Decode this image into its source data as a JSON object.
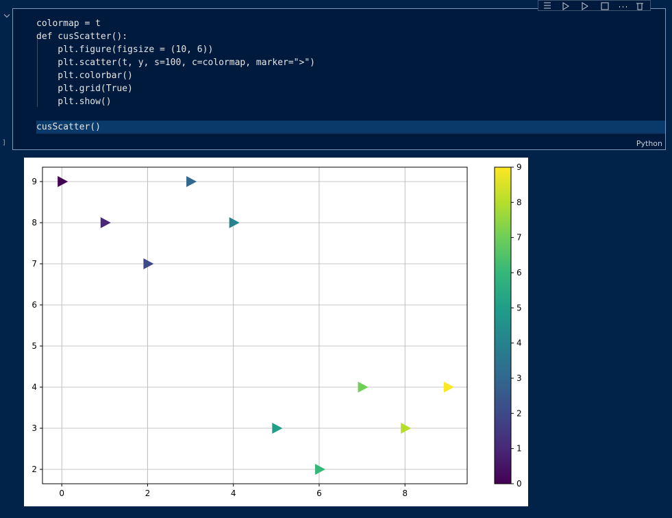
{
  "cell": {
    "code_lines": [
      "colormap = t",
      "def cusScatter():",
      "    plt.figure(figsize = (10, 6))",
      "    plt.scatter(t, y, s=100, c=colormap, marker=\">\")",
      "    plt.colorbar()",
      "    plt.grid(True)",
      "    plt.show()"
    ],
    "call_line": "cusScatter()",
    "language": "Python",
    "execution_marker": "]"
  },
  "chart_data": {
    "type": "scatter",
    "x": [
      0,
      1,
      2,
      3,
      4,
      5,
      6,
      7,
      8,
      9
    ],
    "values": [
      9,
      8,
      7,
      9,
      8,
      3,
      2,
      4,
      3,
      4
    ],
    "colors": [
      "#440154",
      "#482878",
      "#3e4989",
      "#31688e",
      "#26828e",
      "#1f9e89",
      "#35b779",
      "#6ece58",
      "#b5de2b",
      "#fde725"
    ],
    "marker": ">",
    "xlim": [
      -0.45,
      9.45
    ],
    "ylim": [
      1.65,
      9.35
    ],
    "xticks": [
      0,
      2,
      4,
      6,
      8
    ],
    "yticks": [
      2,
      3,
      4,
      5,
      6,
      7,
      8,
      9
    ],
    "grid": true,
    "colorbar": {
      "lim": [
        0,
        9
      ],
      "ticks": [
        0,
        1,
        2,
        3,
        4,
        5,
        6,
        7,
        8,
        9
      ],
      "colors": [
        "#440154",
        "#482878",
        "#3e4989",
        "#31688e",
        "#26828e",
        "#1f9e89",
        "#35b779",
        "#6ece58",
        "#b5de2b",
        "#fde725"
      ]
    }
  }
}
